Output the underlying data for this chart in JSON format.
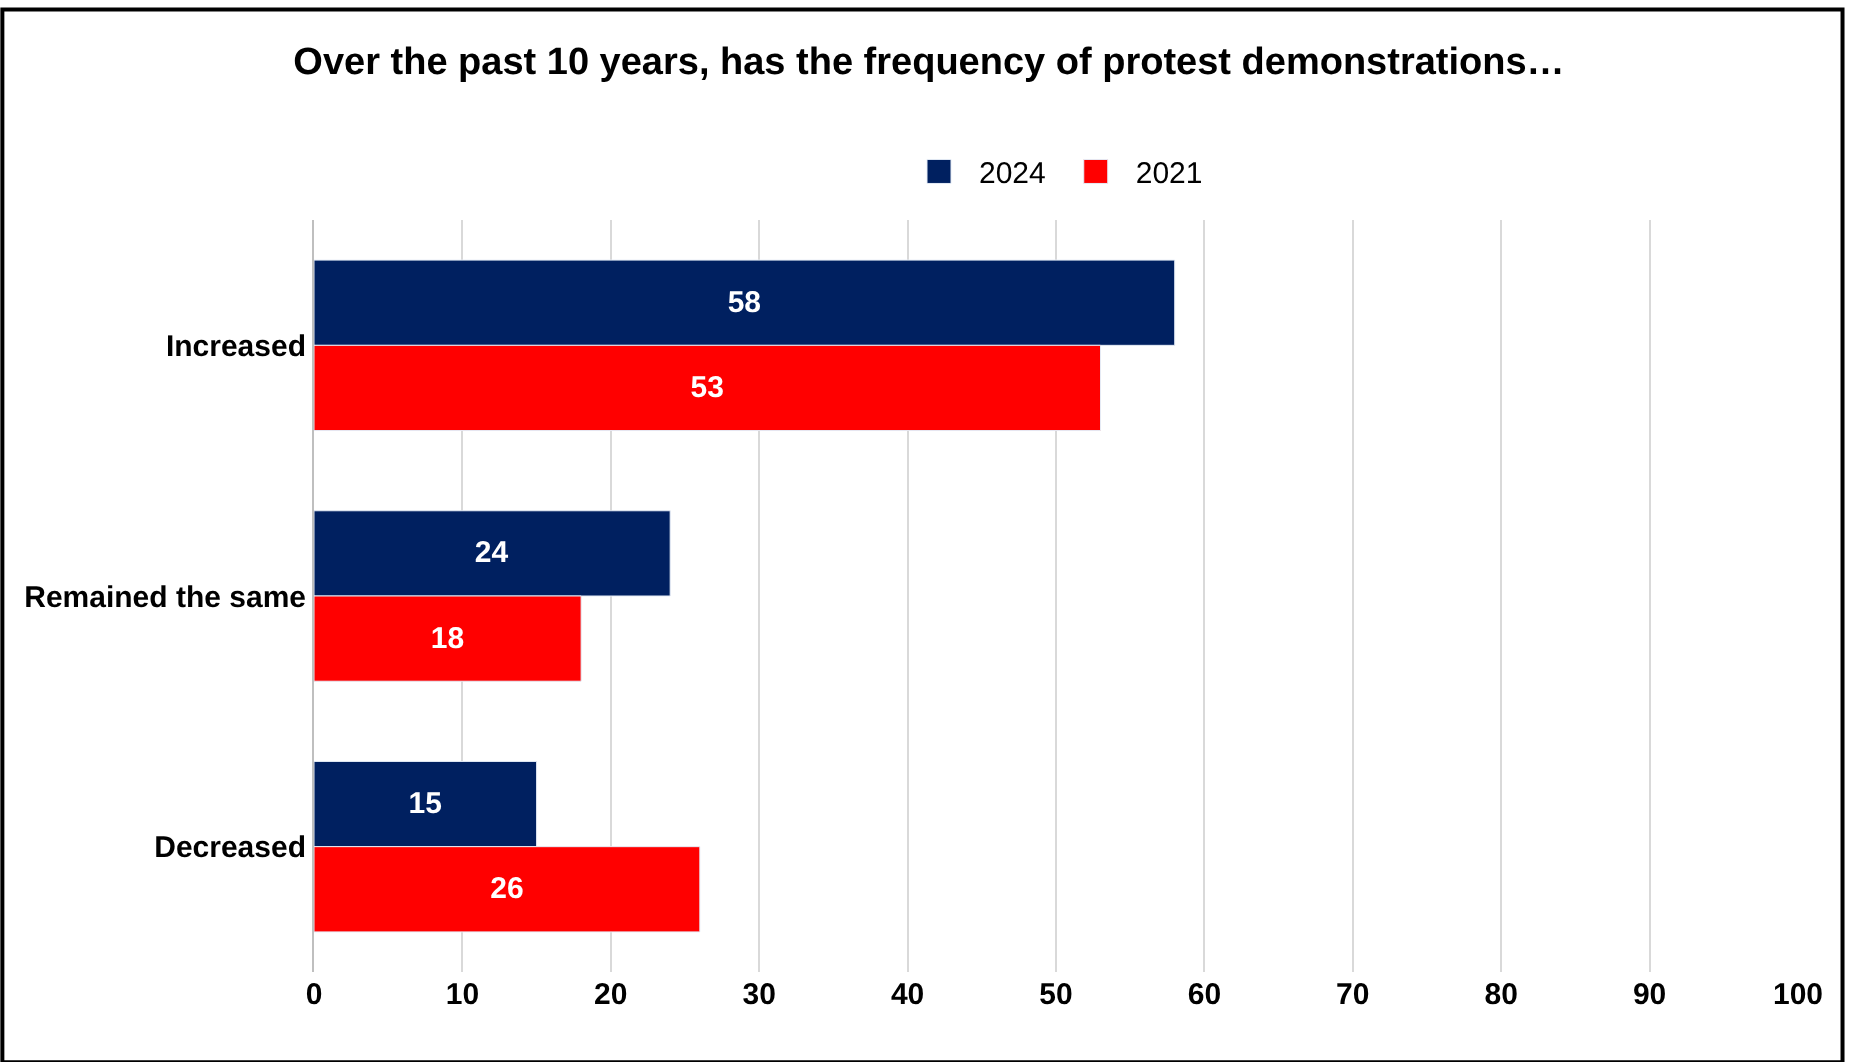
{
  "chart_data": {
    "type": "bar",
    "orientation": "horizontal",
    "title": "Over the past 10 years, has the frequency of protest demonstrations…",
    "categories": [
      "Increased",
      "Remained the same",
      "Decreased"
    ],
    "series": [
      {
        "name": "2024",
        "color": "#002060",
        "values": [
          58,
          24,
          15
        ]
      },
      {
        "name": "2021",
        "color": "#ff0000",
        "values": [
          53,
          18,
          26
        ]
      }
    ],
    "xlim": [
      0,
      100
    ],
    "xticks": [
      0,
      10,
      20,
      30,
      40,
      50,
      60,
      70,
      80,
      90,
      100
    ],
    "grid": "x",
    "legend": "top",
    "data_labels": true
  }
}
